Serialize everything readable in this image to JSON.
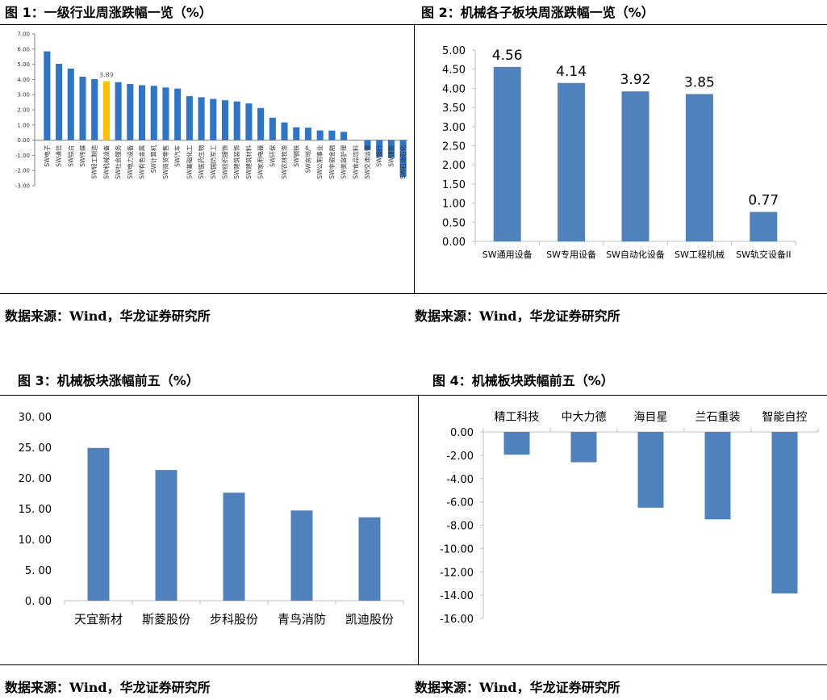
{
  "figures": [
    {
      "title": "图 1：一级行业周涨跌幅一览（%）"
    },
    {
      "title": "图 2：机械各子板块周涨跌幅一览（%）"
    },
    {
      "title": "图 3：机械板块涨幅前五（%）"
    },
    {
      "title": "图 4：机械板块跌幅前五（%）"
    }
  ],
  "sources": [
    "数据来源：Wind，华龙证券研究所",
    "数据来源：Wind，华龙证券研究所",
    "数据来源：Wind，华龙证券研究所",
    "数据来源：Wind，华龙证券研究所"
  ],
  "colors": {
    "bar": "#2e75c8",
    "bar2": "#4f81bd",
    "highlight": "#ffc000",
    "axis": "#808080"
  },
  "chart_data": [
    {
      "type": "bar",
      "title": "",
      "categories": [
        "SW电子",
        "SW通信",
        "SW综合",
        "SW传媒",
        "SW轻工制造",
        "SW机械设备",
        "SW社会服务",
        "SW电力设备",
        "SW有色金属",
        "SW计算机",
        "SW商贸零售",
        "SW汽车",
        "SW基础化工",
        "SW医药生物",
        "SW国防军工",
        "SW纺织服饰",
        "SW建筑装饰",
        "SW建筑材料",
        "SW家用电器",
        "SW环保",
        "SW农林牧渔",
        "SW钢铁",
        "SW房地产",
        "SW公用事业",
        "SW非银金融",
        "SW美容护理",
        "SW食品饮料",
        "SW交通运输",
        "SW银行",
        "SW煤炭",
        "SW石油石化"
      ],
      "values": [
        5.85,
        5.03,
        4.72,
        4.18,
        4.02,
        3.89,
        3.82,
        3.7,
        3.62,
        3.58,
        3.47,
        3.4,
        2.9,
        2.83,
        2.72,
        2.63,
        2.55,
        2.42,
        2.12,
        1.48,
        1.17,
        0.85,
        0.82,
        0.64,
        0.63,
        0.55,
        0.0,
        -0.65,
        -1.12,
        -1.17,
        -2.43
      ],
      "highlight_index": 5,
      "highlight_label": "3.89",
      "ylim": [
        -3,
        7
      ],
      "yticks": [
        "7.00",
        "6.00",
        "5.00",
        "4.00",
        "3.00",
        "2.00",
        "1.00",
        "0.00",
        "-1.00",
        "-2.00",
        "-3.00"
      ]
    },
    {
      "type": "bar",
      "title": "",
      "categories": [
        "SW通用设备",
        "SW专用设备",
        "SW自动化设备",
        "SW工程机械",
        "SW轨交设备II"
      ],
      "values": [
        4.56,
        4.14,
        3.92,
        3.85,
        0.77
      ],
      "labels": [
        "4.56",
        "4.14",
        "3.92",
        "3.85",
        "0.77"
      ],
      "ylim": [
        0,
        5
      ],
      "yticks": [
        "5.00",
        "4.50",
        "4.00",
        "3.50",
        "3.00",
        "2.50",
        "2.00",
        "1.50",
        "1.00",
        "0.50",
        "0.00"
      ]
    },
    {
      "type": "bar",
      "title": "",
      "categories": [
        "天宜新材",
        "斯菱股份",
        "步科股份",
        "青鸟消防",
        "凯迪股份"
      ],
      "values": [
        24.9,
        21.3,
        17.6,
        14.7,
        13.6
      ],
      "ylim": [
        0,
        30
      ],
      "yticks": [
        "30. 00",
        "25. 00",
        "20. 00",
        "15. 00",
        "10. 00",
        "5. 00",
        "0. 00"
      ]
    },
    {
      "type": "bar",
      "title": "",
      "categories": [
        "精工科技",
        "中大力德",
        "海目星",
        "兰石重装",
        "智能自控"
      ],
      "values": [
        -1.95,
        -2.6,
        -6.5,
        -7.5,
        -13.85
      ],
      "ylim": [
        -16,
        0
      ],
      "yticks": [
        "0.00",
        "-2.00",
        "-4.00",
        "-6.00",
        "-8.00",
        "-10.00",
        "-12.00",
        "-14.00",
        "-16.00"
      ]
    }
  ]
}
